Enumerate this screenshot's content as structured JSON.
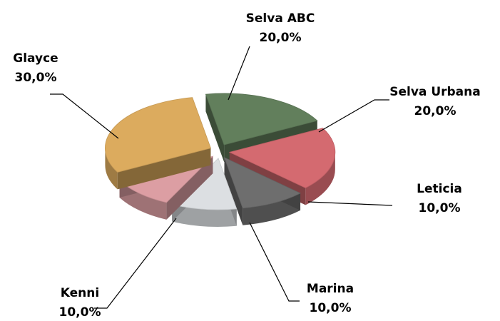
{
  "chart_data": {
    "type": "pie3d",
    "categories": [
      "Selva ABC",
      "Selva Urbana",
      "Leticia",
      "Marina",
      "Kenni",
      "Glayce"
    ],
    "values": [
      20,
      20,
      10,
      10,
      10,
      30
    ],
    "value_labels": [
      "20,0%",
      "20,0%",
      "10,0%",
      "10,0%",
      "10,0%",
      "30,0%"
    ],
    "colors": [
      "#627f5c",
      "#d46a70",
      "#6e6e6e",
      "#dcdfe2",
      "#dc9ea3",
      "#dcab5e"
    ]
  }
}
